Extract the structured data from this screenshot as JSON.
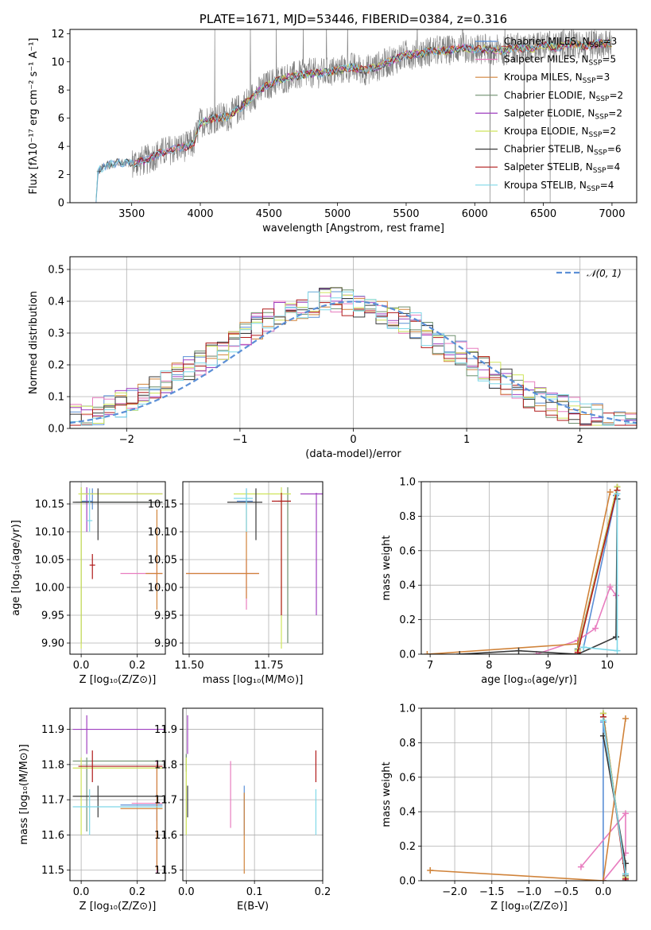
{
  "colors": {
    "Chabrier MILES": "#5b8fd6",
    "Salpeter MILES": "#e87dbf",
    "Kroupa MILES": "#d0833a",
    "Chabrier ELODIE": "#6f8f6f",
    "Salpeter ELODIE": "#a040c0",
    "Kroupa ELODIE": "#cfe45a",
    "Chabrier STELIB": "#3a3a3a",
    "Salpeter STELIB": "#b01a1a",
    "Kroupa STELIB": "#7fd8e8",
    "normal": "#5b8fd6",
    "spectrum": "#808080"
  },
  "chart_data": [
    {
      "type": "line",
      "title": "PLATE=1671, MJD=53446, FIBERID=0384, z=0.316",
      "xlabel": "wavelength [Angstrom, rest frame]",
      "ylabel": "Flux [fλ10⁻¹⁷ erg cm⁻² s⁻¹ A⁻¹]",
      "xlim": [
        3050,
        7180
      ],
      "ylim": [
        0,
        12.3
      ],
      "xticks": [
        3500,
        4000,
        4500,
        5000,
        5500,
        6000,
        6500,
        7000
      ],
      "yticks": [
        0,
        2,
        4,
        6,
        8,
        10,
        12
      ],
      "legend_position": "right",
      "legend": [
        {
          "label": "Chabrier MILES, N",
          "sub": "SSP",
          "tail": "=3"
        },
        {
          "label": "Salpeter MILES, N",
          "sub": "SSP",
          "tail": "=5"
        },
        {
          "label": "Kroupa MILES, N",
          "sub": "SSP",
          "tail": "=3"
        },
        {
          "label": "Chabrier ELODIE, N",
          "sub": "SSP",
          "tail": "=2"
        },
        {
          "label": "Salpeter ELODIE, N",
          "sub": "SSP",
          "tail": "=2"
        },
        {
          "label": "Kroupa ELODIE, N",
          "sub": "SSP",
          "tail": "=2"
        },
        {
          "label": "Chabrier STELIB, N",
          "sub": "SSP",
          "tail": "=6"
        },
        {
          "label": "Salpeter STELIB, N",
          "sub": "SSP",
          "tail": "=4"
        },
        {
          "label": "Kroupa STELIB, N",
          "sub": "SSP",
          "tail": "=4"
        }
      ],
      "continuum": [
        [
          3240,
          0.0
        ],
        [
          3245,
          2.1
        ],
        [
          3300,
          2.6
        ],
        [
          3400,
          2.85
        ],
        [
          3500,
          2.8
        ],
        [
          3600,
          3.0
        ],
        [
          3700,
          3.5
        ],
        [
          3800,
          3.8
        ],
        [
          3900,
          4.0
        ],
        [
          3950,
          4.2
        ],
        [
          4000,
          5.7
        ],
        [
          4100,
          6.0
        ],
        [
          4200,
          6.1
        ],
        [
          4300,
          6.8
        ],
        [
          4400,
          7.7
        ],
        [
          4500,
          8.4
        ],
        [
          4600,
          8.8
        ],
        [
          4700,
          9.0
        ],
        [
          4800,
          9.2
        ],
        [
          4900,
          9.2
        ],
        [
          5000,
          9.4
        ],
        [
          5100,
          9.6
        ],
        [
          5200,
          9.4
        ],
        [
          5300,
          9.7
        ],
        [
          5400,
          10.1
        ],
        [
          5500,
          10.5
        ],
        [
          5600,
          10.6
        ],
        [
          5700,
          10.8
        ],
        [
          5800,
          10.8
        ],
        [
          5900,
          11.0
        ],
        [
          6000,
          10.9
        ],
        [
          6100,
          10.9
        ],
        [
          6200,
          10.8
        ],
        [
          6300,
          11.0
        ],
        [
          6400,
          10.9
        ],
        [
          6500,
          11.2
        ],
        [
          6600,
          11.0
        ],
        [
          6700,
          11.3
        ],
        [
          6800,
          11.1
        ],
        [
          6900,
          11.3
        ],
        [
          7000,
          11.3
        ]
      ]
    },
    {
      "type": "histogram",
      "xlabel": "(data-model)/error",
      "ylabel": "Normed distribution",
      "xlim": [
        -2.5,
        2.5
      ],
      "ylim": [
        0,
        0.54
      ],
      "xticks": [
        -2,
        -1,
        0,
        1,
        2
      ],
      "yticks": [
        0.0,
        0.1,
        0.2,
        0.3,
        0.4,
        0.5
      ],
      "legend": [
        "𝒩(0, 1)"
      ],
      "legend_position": "top-right",
      "bin_edges_start": -2.5,
      "bin_width": 0.1
    },
    {
      "type": "scatter",
      "xlabel": "Z [log₁₀(Z/Z⊙)]",
      "ylabel": "age  [log₁₀(age/yr)]",
      "xlim": [
        -0.04,
        0.3
      ],
      "ylim": [
        9.88,
        10.19
      ],
      "xticks": [
        0.0,
        0.2
      ],
      "yticks": [
        9.9,
        9.95,
        10.0,
        10.05,
        10.1,
        10.15
      ],
      "points": [
        {
          "m": "Chabrier MILES",
          "x": 0.04,
          "xe": [
            0.0,
            0.04
          ],
          "y": 10.155,
          "ye": [
            10.14,
            10.178
          ]
        },
        {
          "m": "Salpeter MILES",
          "x": 0.27,
          "xe": [
            0.14,
            0.29
          ],
          "y": 10.025,
          "ye": [
            10.0,
            10.05
          ]
        },
        {
          "m": "Kroupa MILES",
          "x": 0.27,
          "xe": [
            0.23,
            0.29
          ],
          "y": 10.025,
          "ye": [
            9.96,
            10.14
          ]
        },
        {
          "m": "Chabrier ELODIE",
          "x": 0.0,
          "xe": [
            -0.02,
            0.29
          ],
          "y": 10.153,
          "ye": [
            9.9,
            10.18
          ]
        },
        {
          "m": "Salpeter ELODIE",
          "x": 0.02,
          "xe": [
            0.0,
            0.29
          ],
          "y": 10.168,
          "ye": [
            10.1,
            10.18
          ]
        },
        {
          "m": "Kroupa ELODIE",
          "x": 0.0,
          "xe": [
            -0.01,
            0.29
          ],
          "y": 10.168,
          "ye": [
            9.89,
            10.18
          ]
        },
        {
          "m": "Chabrier STELIB",
          "x": 0.06,
          "xe": [
            -0.03,
            0.29
          ],
          "y": 10.153,
          "ye": [
            10.085,
            10.178
          ]
        },
        {
          "m": "Salpeter STELIB",
          "x": 0.04,
          "xe": [
            0.03,
            0.05
          ],
          "y": 10.04,
          "ye": [
            10.015,
            10.06
          ]
        },
        {
          "m": "Kroupa STELIB",
          "x": 0.03,
          "xe": [
            0.02,
            0.04
          ],
          "y": 10.12,
          "ye": [
            10.1,
            10.178
          ]
        }
      ]
    },
    {
      "type": "scatter",
      "xlabel": "mass [log₁₀(M/M⊙)]",
      "ylabel": "",
      "xlim": [
        11.48,
        11.92
      ],
      "ylim": [
        9.88,
        10.19
      ],
      "xticks": [
        11.5,
        11.75
      ],
      "yticks": [
        9.9,
        9.95,
        10.0,
        10.05,
        10.1,
        10.15
      ],
      "points": [
        {
          "m": "Chabrier MILES",
          "x": 11.68,
          "xe": [
            11.65,
            11.7
          ],
          "y": 10.155,
          "ye": [
            10.14,
            10.178
          ]
        },
        {
          "m": "Salpeter MILES",
          "x": 11.68,
          "xe": [
            11.49,
            11.72
          ],
          "y": 10.025,
          "ye": [
            9.96,
            10.05
          ]
        },
        {
          "m": "Kroupa MILES",
          "x": 11.68,
          "xe": [
            11.49,
            11.72
          ],
          "y": 10.025,
          "ye": [
            9.98,
            10.14
          ]
        },
        {
          "m": "Chabrier ELODIE",
          "x": 11.81,
          "xe": [
            11.78,
            11.82
          ],
          "y": 10.155,
          "ye": [
            9.9,
            10.18
          ]
        },
        {
          "m": "Salpeter ELODIE",
          "x": 11.9,
          "xe": [
            11.85,
            11.93
          ],
          "y": 10.168,
          "ye": [
            9.95,
            10.17
          ]
        },
        {
          "m": "Kroupa ELODIE",
          "x": 11.79,
          "xe": [
            11.64,
            11.82
          ],
          "y": 10.168,
          "ye": [
            9.89,
            10.18
          ]
        },
        {
          "m": "Chabrier STELIB",
          "x": 11.71,
          "xe": [
            11.62,
            11.73
          ],
          "y": 10.153,
          "ye": [
            10.085,
            10.178
          ]
        },
        {
          "m": "Salpeter STELIB",
          "x": 11.79,
          "xe": [
            11.76,
            11.82
          ],
          "y": 10.155,
          "ye": [
            9.95,
            10.17
          ]
        },
        {
          "m": "Kroupa STELIB",
          "x": 11.68,
          "xe": [
            11.64,
            11.7
          ],
          "y": 10.16,
          "ye": [
            10.1,
            10.178
          ]
        }
      ]
    },
    {
      "type": "line",
      "xlabel": "age  [log₁₀(age/yr)]",
      "ylabel": "mass weight",
      "xlim": [
        6.85,
        10.5
      ],
      "ylim": [
        0,
        1
      ],
      "xticks": [
        7,
        8,
        9,
        10
      ],
      "yticks": [
        0.0,
        0.2,
        0.4,
        0.6,
        0.8,
        1.0
      ],
      "series": [
        {
          "m": "Chabrier MILES",
          "pts": [
            [
              9.6,
              0.04
            ],
            [
              10.15,
              0.92
            ]
          ]
        },
        {
          "m": "Salpeter MILES",
          "pts": [
            [
              8.8,
              0.0
            ],
            [
              9.5,
              0.08
            ],
            [
              9.8,
              0.15
            ],
            [
              10.05,
              0.39
            ],
            [
              10.15,
              0.34
            ]
          ]
        },
        {
          "m": "Kroupa MILES",
          "pts": [
            [
              6.95,
              0.0
            ],
            [
              9.5,
              0.06
            ],
            [
              10.05,
              0.94
            ]
          ]
        },
        {
          "m": "Chabrier ELODIE",
          "pts": [
            [
              9.5,
              0.03
            ],
            [
              10.17,
              0.97
            ]
          ]
        },
        {
          "m": "Salpeter ELODIE",
          "pts": [
            [
              9.5,
              0.02
            ],
            [
              10.17,
              0.97
            ]
          ]
        },
        {
          "m": "Kroupa ELODIE",
          "pts": [
            [
              9.5,
              0.02
            ],
            [
              10.17,
              0.97
            ]
          ]
        },
        {
          "m": "Chabrier STELIB",
          "pts": [
            [
              7.5,
              0.0
            ],
            [
              8.5,
              0.02
            ],
            [
              9.5,
              0.0
            ],
            [
              10.15,
              0.1
            ],
            [
              10.17,
              0.9
            ]
          ]
        },
        {
          "m": "Salpeter STELIB",
          "pts": [
            [
              9.5,
              0.01
            ],
            [
              10.17,
              0.95
            ]
          ]
        },
        {
          "m": "Kroupa STELIB",
          "pts": [
            [
              9.6,
              0.04
            ],
            [
              10.17,
              0.02
            ],
            [
              10.17,
              0.93
            ]
          ]
        }
      ]
    },
    {
      "type": "scatter",
      "xlabel": "Z [log₁₀(Z/Z⊙)]",
      "ylabel": "mass [log₁₀(M/M⊙)]",
      "xlim": [
        -0.04,
        0.3
      ],
      "ylim": [
        11.47,
        11.96
      ],
      "xticks": [
        0.0,
        0.2
      ],
      "yticks": [
        11.5,
        11.6,
        11.7,
        11.8,
        11.9
      ],
      "points": [
        {
          "m": "Chabrier MILES",
          "x": 0.27,
          "xe": [
            0.14,
            0.29
          ],
          "y": 11.685,
          "ye": [
            11.64,
            11.72
          ]
        },
        {
          "m": "Salpeter MILES",
          "x": 0.27,
          "xe": [
            0.18,
            0.29
          ],
          "y": 11.69,
          "ye": [
            11.49,
            11.81
          ]
        },
        {
          "m": "Kroupa MILES",
          "x": 0.27,
          "xe": [
            0.14,
            0.29
          ],
          "y": 11.675,
          "ye": [
            11.5,
            11.8
          ]
        },
        {
          "m": "Chabrier ELODIE",
          "x": 0.02,
          "xe": [
            -0.03,
            0.29
          ],
          "y": 11.81,
          "ye": [
            11.61,
            11.82
          ]
        },
        {
          "m": "Salpeter ELODIE",
          "x": 0.02,
          "xe": [
            -0.03,
            0.3
          ],
          "y": 11.9,
          "ye": [
            11.83,
            11.94
          ]
        },
        {
          "m": "Kroupa ELODIE",
          "x": 0.0,
          "xe": [
            -0.03,
            0.29
          ],
          "y": 11.79,
          "ye": [
            11.6,
            11.82
          ]
        },
        {
          "m": "Chabrier STELIB",
          "x": 0.06,
          "xe": [
            -0.03,
            0.29
          ],
          "y": 11.71,
          "ye": [
            11.65,
            11.74
          ]
        },
        {
          "m": "Salpeter STELIB",
          "x": 0.04,
          "xe": [
            -0.01,
            0.29
          ],
          "y": 11.795,
          "ye": [
            11.75,
            11.84
          ]
        },
        {
          "m": "Kroupa STELIB",
          "x": 0.03,
          "xe": [
            -0.03,
            0.29
          ],
          "y": 11.68,
          "ye": [
            11.6,
            11.73
          ]
        }
      ]
    },
    {
      "type": "scatter",
      "xlabel": "E(B-V)",
      "ylabel": "",
      "xlim": [
        -0.005,
        0.2
      ],
      "ylim": [
        11.47,
        11.96
      ],
      "xticks": [
        0.0,
        0.1,
        0.2
      ],
      "yticks": [
        11.5,
        11.6,
        11.7,
        11.8,
        11.9
      ],
      "points": [
        {
          "m": "Chabrier MILES",
          "x": 0.085,
          "y": 11.66,
          "ye": [
            11.6,
            11.74
          ]
        },
        {
          "m": "Salpeter MILES",
          "x": 0.065,
          "y": 11.7,
          "ye": [
            11.62,
            11.81
          ]
        },
        {
          "m": "Kroupa MILES",
          "x": 0.085,
          "y": 11.6,
          "ye": [
            11.49,
            11.72
          ]
        },
        {
          "m": "Chabrier ELODIE",
          "x": 0.0,
          "y": 11.81,
          "ye": [
            11.78,
            11.83
          ]
        },
        {
          "m": "Salpeter ELODIE",
          "x": 0.002,
          "y": 11.88,
          "ye": [
            11.83,
            11.94
          ]
        },
        {
          "m": "Kroupa ELODIE",
          "x": 0.0,
          "y": 11.72,
          "ye": [
            11.6,
            11.82
          ]
        },
        {
          "m": "Chabrier STELIB",
          "x": 0.002,
          "y": 11.7,
          "ye": [
            11.65,
            11.74
          ]
        },
        {
          "m": "Salpeter STELIB",
          "x": 0.19,
          "y": 11.8,
          "ye": [
            11.75,
            11.84
          ]
        },
        {
          "m": "Kroupa STELIB",
          "x": 0.19,
          "y": 11.67,
          "ye": [
            11.6,
            11.73
          ]
        }
      ]
    },
    {
      "type": "line",
      "xlabel": "Z [log₁₀(Z/Z⊙)]",
      "ylabel": "mass weight",
      "xlim": [
        -2.45,
        0.45
      ],
      "ylim": [
        0,
        1
      ],
      "xticks": [
        -2.0,
        -1.5,
        -1.0,
        -0.5,
        0.0
      ],
      "yticks": [
        0.0,
        0.2,
        0.4,
        0.6,
        0.8,
        1.0
      ],
      "series": [
        {
          "m": "Chabrier MILES",
          "pts": [
            [
              0.0,
              0.0
            ],
            [
              0.0,
              0.92
            ],
            [
              0.3,
              0.04
            ]
          ]
        },
        {
          "m": "Salpeter MILES",
          "pts": [
            [
              -0.3,
              0.08
            ],
            [
              0.3,
              0.39
            ],
            [
              0.3,
              0.16
            ],
            [
              0.0,
              0.0
            ]
          ]
        },
        {
          "m": "Kroupa MILES",
          "pts": [
            [
              -2.33,
              0.06
            ],
            [
              0.0,
              0.0
            ],
            [
              0.3,
              0.94
            ]
          ]
        },
        {
          "m": "Chabrier ELODIE",
          "pts": [
            [
              0.0,
              0.97
            ],
            [
              0.3,
              0.03
            ]
          ]
        },
        {
          "m": "Salpeter ELODIE",
          "pts": [
            [
              0.0,
              0.97
            ],
            [
              0.3,
              0.02
            ]
          ]
        },
        {
          "m": "Kroupa ELODIE",
          "pts": [
            [
              0.0,
              0.97
            ],
            [
              0.3,
              0.02
            ]
          ]
        },
        {
          "m": "Chabrier STELIB",
          "pts": [
            [
              0.0,
              0.84
            ],
            [
              0.3,
              0.1
            ],
            [
              0.3,
              0.0
            ]
          ]
        },
        {
          "m": "Salpeter STELIB",
          "pts": [
            [
              0.0,
              0.95
            ],
            [
              0.3,
              0.01
            ]
          ]
        },
        {
          "m": "Kroupa STELIB",
          "pts": [
            [
              0.0,
              0.93
            ],
            [
              0.3,
              0.04
            ]
          ]
        }
      ]
    }
  ]
}
